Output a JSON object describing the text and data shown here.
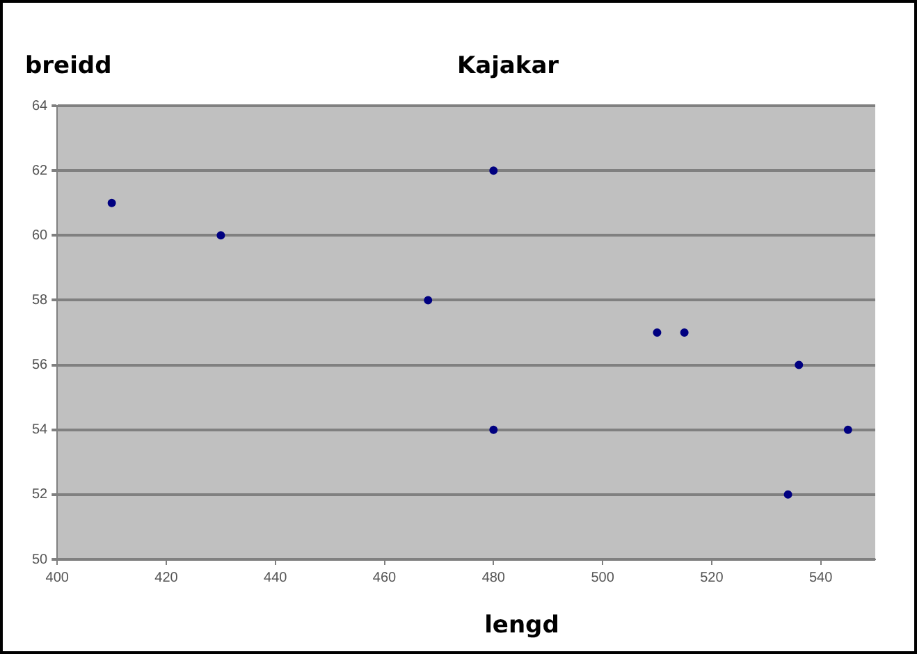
{
  "chart_data": {
    "type": "scatter",
    "title": "Kajakar",
    "xlabel": "lengd",
    "ylabel": "breidd",
    "x": [
      410,
      430,
      468,
      480,
      480,
      510,
      515,
      536,
      545,
      534
    ],
    "values": [
      61,
      60,
      58,
      62,
      54,
      57,
      57,
      56,
      54,
      52
    ],
    "color": "#000080",
    "marker": "circle",
    "xlim": [
      400,
      550
    ],
    "xticks": [
      400,
      420,
      440,
      460,
      480,
      500,
      520,
      540
    ],
    "ylim": [
      50,
      64
    ],
    "yticks": [
      50,
      52,
      54,
      56,
      58,
      60,
      62,
      64
    ],
    "grid": "y",
    "legend": false
  }
}
